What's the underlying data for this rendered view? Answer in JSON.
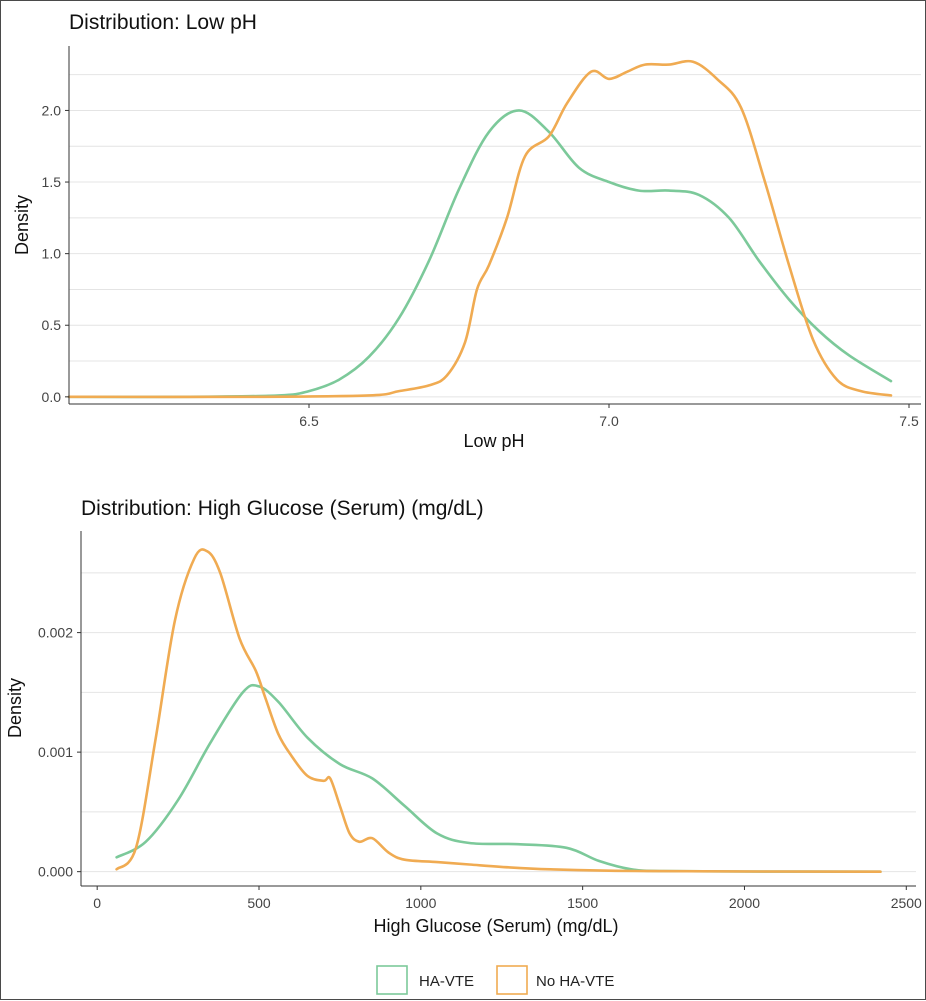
{
  "legend": {
    "items": [
      {
        "label": "HA-VTE",
        "color": "#7cc99a"
      },
      {
        "label": "No HA-VTE",
        "color": "#f0ab52"
      }
    ]
  },
  "chart_data": [
    {
      "type": "area",
      "title": "Distribution: Low pH",
      "xlabel": "Low pH",
      "ylabel": "Density",
      "xlim": [
        6.1,
        7.52
      ],
      "ylim": [
        -0.05,
        2.45
      ],
      "xticks": [
        "6.5",
        "7.0",
        "7.5"
      ],
      "xtick_values": [
        6.5,
        7.0,
        7.5
      ],
      "yticks": [
        "0.0",
        "0.5",
        "1.0",
        "1.5",
        "2.0"
      ],
      "ytick_values": [
        0,
        0.5,
        1.0,
        1.5,
        2.0
      ],
      "grid": true,
      "series": [
        {
          "name": "HA-VTE",
          "color": "#7cc99a",
          "x": [
            6.1,
            6.3,
            6.45,
            6.5,
            6.55,
            6.6,
            6.65,
            6.7,
            6.75,
            6.8,
            6.85,
            6.9,
            6.95,
            7.0,
            7.05,
            7.1,
            7.15,
            7.2,
            7.25,
            7.3,
            7.35,
            7.4,
            7.47
          ],
          "values": [
            0,
            0,
            0.01,
            0.04,
            0.12,
            0.28,
            0.55,
            0.95,
            1.45,
            1.85,
            2.0,
            1.85,
            1.6,
            1.5,
            1.44,
            1.44,
            1.41,
            1.25,
            0.95,
            0.68,
            0.46,
            0.29,
            0.11
          ]
        },
        {
          "name": "No HA-VTE",
          "color": "#f0ab52",
          "x": [
            6.1,
            6.4,
            6.6,
            6.65,
            6.7,
            6.73,
            6.76,
            6.78,
            6.8,
            6.83,
            6.86,
            6.9,
            6.93,
            6.97,
            7.0,
            7.03,
            7.06,
            7.1,
            7.14,
            7.18,
            7.22,
            7.26,
            7.3,
            7.34,
            7.38,
            7.42,
            7.47
          ],
          "values": [
            0,
            0,
            0.01,
            0.04,
            0.08,
            0.15,
            0.38,
            0.75,
            0.92,
            1.25,
            1.68,
            1.82,
            2.05,
            2.27,
            2.22,
            2.27,
            2.32,
            2.32,
            2.34,
            2.22,
            2.02,
            1.5,
            0.92,
            0.4,
            0.12,
            0.04,
            0.01
          ]
        }
      ]
    },
    {
      "type": "area",
      "title": "Distribution: High Glucose (Serum) (mg/dL)",
      "xlabel": "High Glucose (Serum) (mg/dL)",
      "ylabel": "Density",
      "xlim": [
        -50,
        2530
      ],
      "ylim": [
        -0.00012,
        0.00285
      ],
      "xticks": [
        "0",
        "500",
        "1000",
        "1500",
        "2000",
        "2500"
      ],
      "xtick_values": [
        0,
        500,
        1000,
        1500,
        2000,
        2500
      ],
      "yticks": [
        "0.000",
        "0.001",
        "0.002"
      ],
      "ytick_values": [
        0,
        0.001,
        0.002
      ],
      "grid": true,
      "series": [
        {
          "name": "HA-VTE",
          "color": "#7cc99a",
          "x": [
            60,
            150,
            250,
            350,
            450,
            500,
            560,
            650,
            750,
            850,
            950,
            1050,
            1150,
            1300,
            1450,
            1550,
            1650,
            1750,
            2000,
            2420
          ],
          "values": [
            0.00012,
            0.00025,
            0.0006,
            0.00108,
            0.0015,
            0.00155,
            0.00142,
            0.00112,
            0.0009,
            0.00078,
            0.00055,
            0.00032,
            0.00024,
            0.00023,
            0.0002,
            9e-05,
            2e-05,
            5e-06,
            1.5e-06,
            0
          ]
        },
        {
          "name": "No HA-VTE",
          "color": "#f0ab52",
          "x": [
            60,
            120,
            180,
            240,
            300,
            340,
            380,
            440,
            490,
            520,
            560,
            600,
            650,
            700,
            720,
            750,
            780,
            810,
            850,
            900,
            950,
            1050,
            1150,
            1250,
            1400,
            1700,
            2420
          ],
          "values": [
            2e-05,
            0.0002,
            0.0011,
            0.0021,
            0.00262,
            0.00268,
            0.0025,
            0.00195,
            0.00168,
            0.00145,
            0.00115,
            0.00097,
            0.0008,
            0.00076,
            0.00078,
            0.00055,
            0.00032,
            0.00025,
            0.00028,
            0.00016,
            0.0001,
            8e-05,
            6e-05,
            4e-05,
            2e-05,
            5e-06,
            0
          ]
        }
      ]
    }
  ]
}
